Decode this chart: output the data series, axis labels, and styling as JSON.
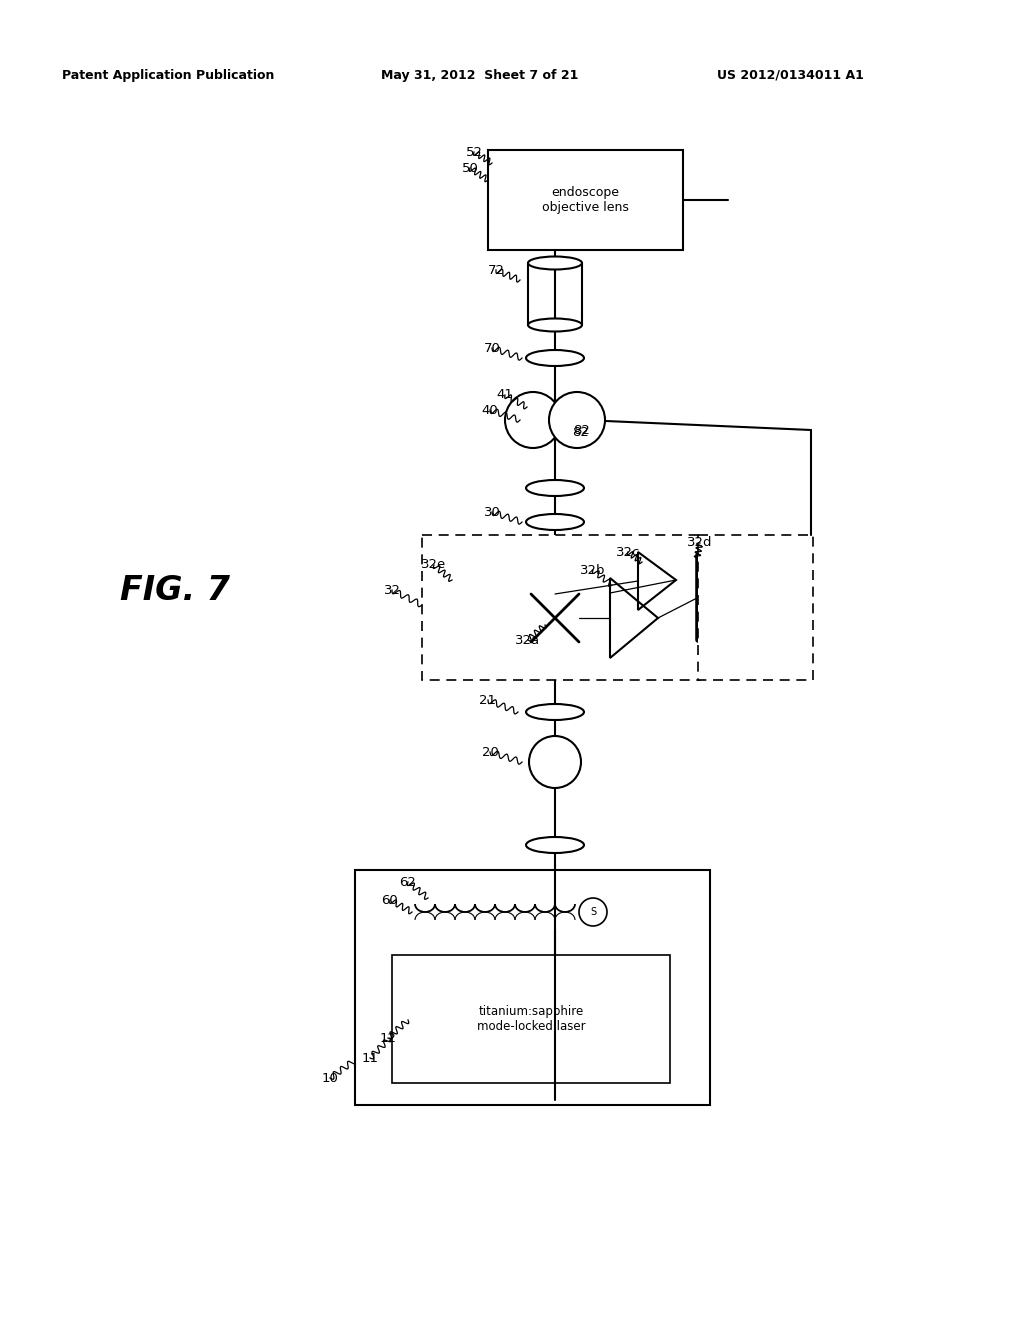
{
  "bg_color": "#ffffff",
  "header_left": "Patent Application Publication",
  "header_mid": "May 31, 2012  Sheet 7 of 21",
  "header_right": "US 2012/0134011 A1",
  "fig_label": "FIG. 7"
}
